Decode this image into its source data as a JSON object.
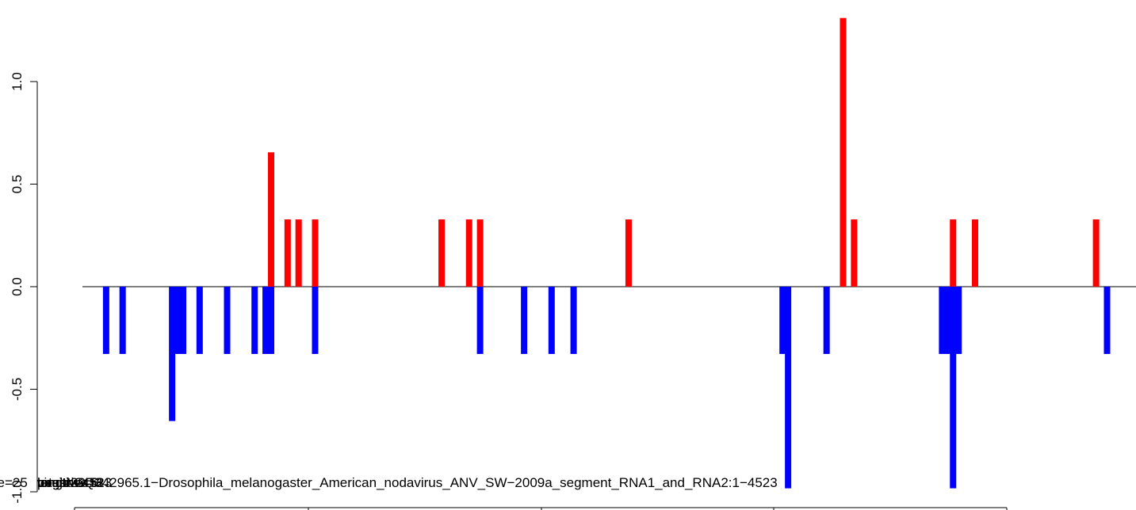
{
  "chart_data": {
    "type": "bar",
    "title": "",
    "xlabel": "",
    "ylabel": "",
    "xlim": [
      0,
      4523
    ],
    "ylim": [
      -1.0,
      1.32
    ],
    "y_ticks": [
      "-1.0",
      "-0.5",
      "0.0",
      "0.5",
      "1.0"
    ],
    "y_tick_values": [
      -1.0,
      -0.5,
      0.0,
      0.5,
      1.0
    ],
    "colors": {
      "positive": "#ff0000",
      "negative": "#0000ff",
      "axis": "#000000"
    },
    "overlay_labels": [
      "ze=25",
      "positive=6",
      "length=4523",
      "negative=8",
      "virus=GQ342965.1−Drosophila_melanogaster_American_nodavirus_ANV_SW−2009a_segment_RNA1_and_RNA2:1−4523",
      "total=29"
    ],
    "series": [
      {
        "values": [
          {
            "x": 800,
            "y": 0.655
          },
          {
            "x": 875,
            "y": 0.328
          },
          {
            "x": 925,
            "y": 0.328
          },
          {
            "x": 1000,
            "y": 0.328
          },
          {
            "x": 1575,
            "y": 0.328
          },
          {
            "x": 1700,
            "y": 0.328
          },
          {
            "x": 1750,
            "y": 0.328
          },
          {
            "x": 2425,
            "y": 0.328
          },
          {
            "x": 3400,
            "y": 1.31
          },
          {
            "x": 3450,
            "y": 0.328
          },
          {
            "x": 3900,
            "y": 0.328
          },
          {
            "x": 4000,
            "y": 0.328
          },
          {
            "x": 4550,
            "y": 0.328
          }
        ]
      },
      {
        "values": [
          {
            "x": 50,
            "y": -0.328
          },
          {
            "x": 125,
            "y": -0.328
          },
          {
            "x": 350,
            "y": -0.655
          },
          {
            "x": 375,
            "y": -0.328
          },
          {
            "x": 400,
            "y": -0.328
          },
          {
            "x": 475,
            "y": -0.328
          },
          {
            "x": 600,
            "y": -0.328
          },
          {
            "x": 725,
            "y": -0.328
          },
          {
            "x": 775,
            "y": -0.328
          },
          {
            "x": 800,
            "y": -0.328
          },
          {
            "x": 1000,
            "y": -0.328
          },
          {
            "x": 1750,
            "y": -0.328
          },
          {
            "x": 1950,
            "y": -0.328
          },
          {
            "x": 2075,
            "y": -0.328
          },
          {
            "x": 2175,
            "y": -0.328
          },
          {
            "x": 3125,
            "y": -0.328
          },
          {
            "x": 3150,
            "y": -0.983
          },
          {
            "x": 3325,
            "y": -0.328
          },
          {
            "x": 3850,
            "y": -0.328
          },
          {
            "x": 3875,
            "y": -0.328
          },
          {
            "x": 3900,
            "y": -0.983
          },
          {
            "x": 3925,
            "y": -0.328
          },
          {
            "x": 4600,
            "y": -0.328
          }
        ]
      }
    ]
  }
}
